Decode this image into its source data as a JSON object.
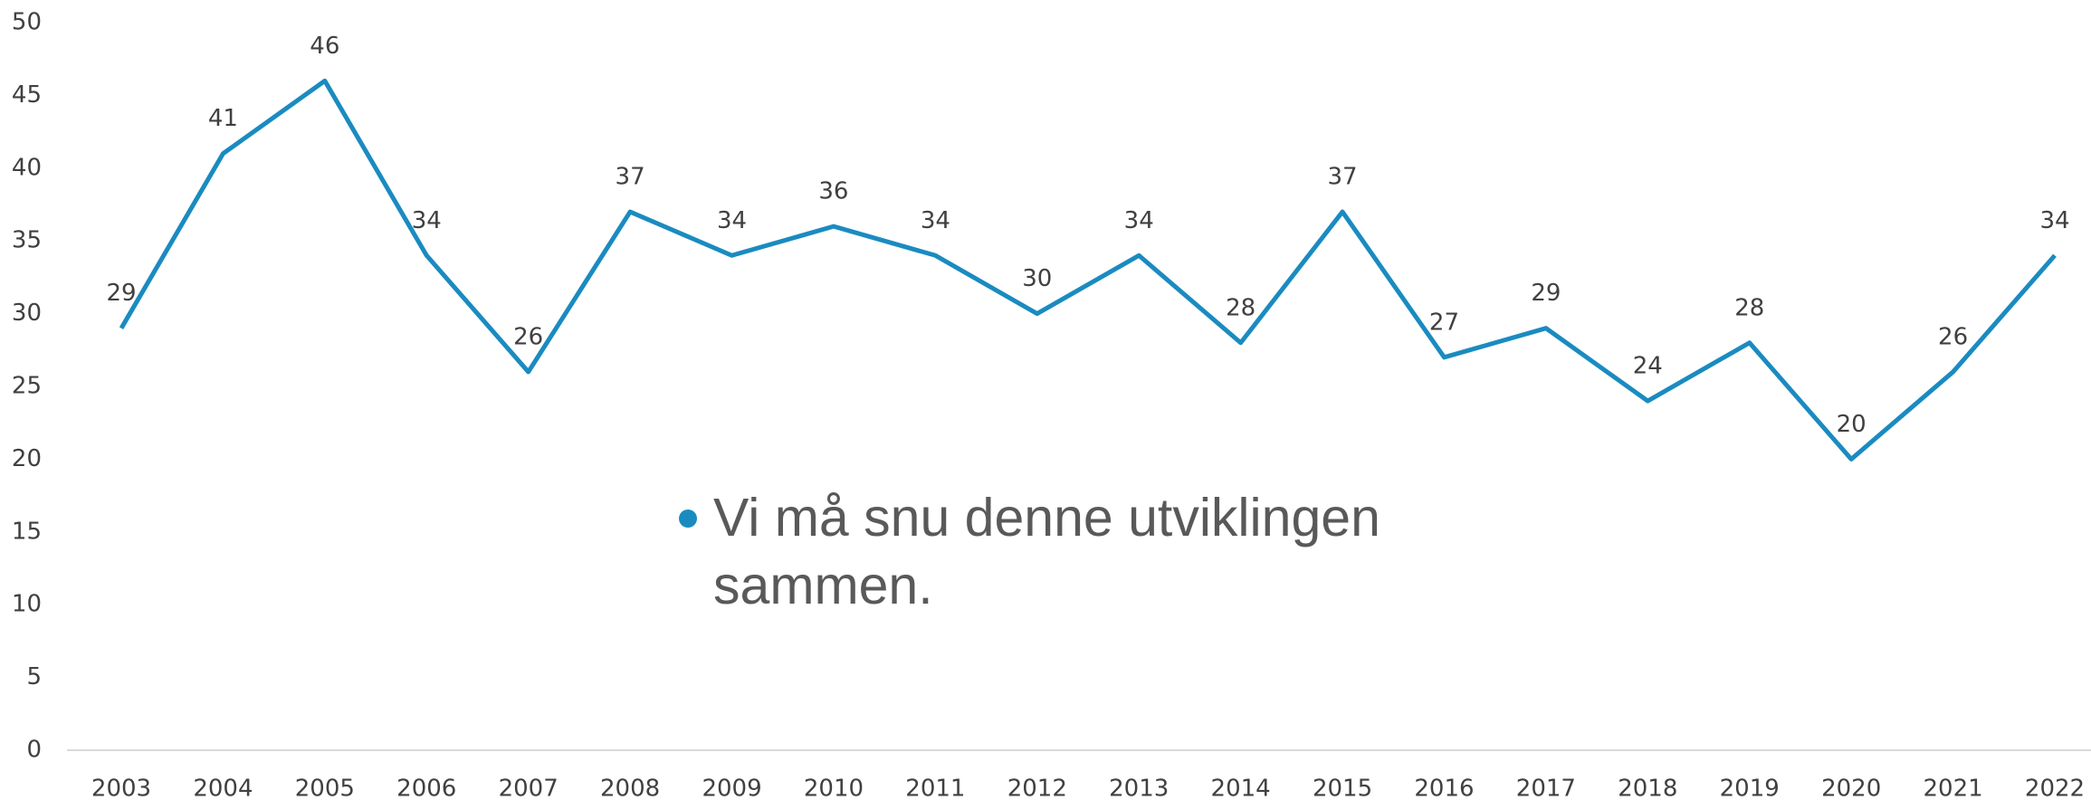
{
  "chart_data": {
    "type": "line",
    "categories": [
      "2003",
      "2004",
      "2005",
      "2006",
      "2007",
      "2008",
      "2009",
      "2010",
      "2011",
      "2012",
      "2013",
      "2014",
      "2015",
      "2016",
      "2017",
      "2018",
      "2019",
      "2020",
      "2021",
      "2022"
    ],
    "values": [
      29,
      41,
      46,
      34,
      26,
      37,
      34,
      36,
      34,
      30,
      34,
      28,
      37,
      27,
      29,
      24,
      28,
      20,
      26,
      34
    ],
    "color": "#1a8bc0",
    "ylim": [
      0,
      50
    ],
    "yticks": [
      0,
      5,
      10,
      15,
      20,
      25,
      30,
      35,
      40,
      45,
      50
    ],
    "grid": false,
    "annotation": "Vi må snu denne utviklingen sammen."
  }
}
